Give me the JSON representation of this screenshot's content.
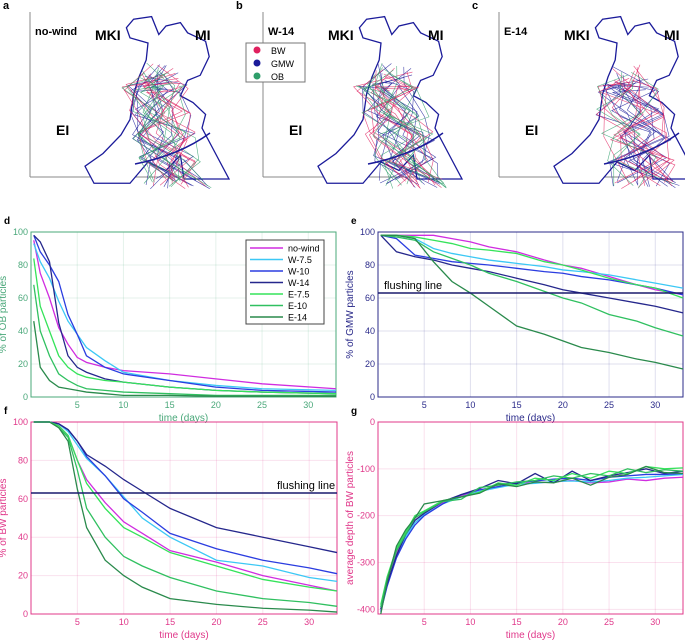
{
  "maps": [
    {
      "panel": "a",
      "title": "no-wind",
      "labels": [
        "MKI",
        "MI",
        "EI"
      ]
    },
    {
      "panel": "b",
      "title": "W-14",
      "labels": [
        "MKI",
        "MI",
        "EI"
      ]
    },
    {
      "panel": "c",
      "title": "E-14",
      "labels": [
        "MKI",
        "MI",
        "EI"
      ]
    }
  ],
  "map_legend": [
    {
      "label": "BW",
      "color": "#e0205f"
    },
    {
      "label": "GMW",
      "color": "#1b1b9a"
    },
    {
      "label": "OB",
      "color": "#2e9e6a"
    }
  ],
  "series_styles": [
    {
      "name": "no-wind",
      "color": "#d02de0"
    },
    {
      "name": "W-7.5",
      "color": "#3cc8f5"
    },
    {
      "name": "W-10",
      "color": "#2b3de0"
    },
    {
      "name": "W-14",
      "color": "#25278c"
    },
    {
      "name": "E-7.5",
      "color": "#35e35a"
    },
    {
      "name": "E-10",
      "color": "#30c060"
    },
    {
      "name": "E-14",
      "color": "#2a8a4c"
    }
  ],
  "chart_data": [
    {
      "panel": "d",
      "type": "line",
      "xlabel": "time (days)",
      "ylabel": "% of OB particles",
      "axis_color": "#4aa87a",
      "xlim": [
        0,
        33
      ],
      "ylim": [
        0,
        100
      ],
      "xticks": [
        5,
        10,
        15,
        20,
        25,
        30
      ],
      "yticks": [
        0,
        20,
        40,
        60,
        80,
        100
      ],
      "legend": "top-right",
      "x": [
        0.3,
        1,
        2,
        3,
        4,
        5,
        6,
        8,
        10,
        15,
        20,
        25,
        33
      ],
      "series": [
        {
          "name": "no-wind",
          "values": [
            95,
            75,
            60,
            42,
            32,
            24,
            21,
            18,
            16,
            14,
            11,
            8,
            5
          ]
        },
        {
          "name": "W-7.5",
          "values": [
            93,
            82,
            72,
            58,
            46,
            38,
            30,
            22,
            15,
            10,
            7,
            5,
            4
          ]
        },
        {
          "name": "W-10",
          "values": [
            98,
            88,
            80,
            70,
            50,
            38,
            25,
            18,
            14,
            10,
            6,
            4,
            3
          ]
        },
        {
          "name": "W-14",
          "values": [
            98,
            94,
            82,
            45,
            25,
            18,
            15,
            11,
            9,
            6,
            4,
            3,
            2
          ]
        },
        {
          "name": "E-7.5",
          "values": [
            84,
            55,
            40,
            25,
            18,
            14,
            12,
            10,
            9,
            6,
            4,
            3,
            2
          ]
        },
        {
          "name": "E-10",
          "values": [
            68,
            40,
            25,
            14,
            10,
            7,
            5,
            4,
            3,
            2,
            1,
            1,
            1
          ]
        },
        {
          "name": "E-14",
          "values": [
            46,
            18,
            10,
            6,
            5,
            4,
            3,
            2,
            1,
            1,
            0.5,
            0.5,
            0.5
          ]
        }
      ]
    },
    {
      "panel": "e",
      "type": "line",
      "xlabel": "time (days)",
      "ylabel": "% of GMW particles",
      "axis_color": "#2b2b8a",
      "xlim": [
        0,
        33
      ],
      "ylim": [
        0,
        100
      ],
      "xticks": [
        5,
        10,
        15,
        20,
        25,
        30
      ],
      "yticks": [
        0,
        20,
        40,
        60,
        80,
        100
      ],
      "hline": {
        "value": 63,
        "label": "flushing line"
      },
      "x": [
        0.3,
        2,
        4,
        6,
        8,
        10,
        12,
        15,
        18,
        20,
        22,
        25,
        28,
        30,
        33
      ],
      "series": [
        {
          "name": "no-wind",
          "values": [
            98,
            98,
            98,
            98,
            96,
            94,
            91,
            88,
            83,
            80,
            78,
            73,
            68,
            65,
            62
          ]
        },
        {
          "name": "W-7.5",
          "values": [
            98,
            98,
            96,
            90,
            87,
            85,
            83,
            81,
            79,
            77,
            76,
            74,
            71,
            69,
            66
          ]
        },
        {
          "name": "W-10",
          "values": [
            98,
            96,
            86,
            84,
            82,
            81,
            80,
            78,
            76,
            75,
            73,
            71,
            68,
            66,
            62
          ]
        },
        {
          "name": "W-14",
          "values": [
            98,
            88,
            85,
            83,
            80,
            78,
            76,
            72,
            68,
            65,
            63,
            60,
            57,
            55,
            51
          ]
        },
        {
          "name": "E-7.5",
          "values": [
            98,
            98,
            97,
            95,
            93,
            90,
            89,
            87,
            82,
            80,
            77,
            72,
            68,
            66,
            60
          ]
        },
        {
          "name": "E-10",
          "values": [
            98,
            97,
            95,
            88,
            84,
            80,
            75,
            70,
            64,
            60,
            57,
            50,
            46,
            42,
            37
          ]
        },
        {
          "name": "E-14",
          "values": [
            98,
            98,
            96,
            82,
            70,
            63,
            55,
            43,
            38,
            34,
            30,
            27,
            23,
            21,
            17
          ]
        }
      ]
    },
    {
      "panel": "f",
      "type": "line",
      "xlabel": "time (days)",
      "ylabel": "% of BW particles",
      "axis_color": "#e0388a",
      "xlim": [
        0,
        33
      ],
      "ylim": [
        0,
        100
      ],
      "xticks": [
        5,
        10,
        15,
        20,
        25,
        30
      ],
      "yticks": [
        0,
        20,
        40,
        60,
        80,
        100
      ],
      "hline": {
        "value": 63,
        "label": "flushing line"
      },
      "x": [
        0.3,
        2,
        3,
        4,
        5,
        6,
        8,
        10,
        12,
        15,
        20,
        25,
        30,
        33
      ],
      "series": [
        {
          "name": "no-wind",
          "values": [
            100,
            100,
            98,
            93,
            80,
            70,
            58,
            48,
            42,
            33,
            27,
            20,
            15,
            12
          ]
        },
        {
          "name": "W-7.5",
          "values": [
            100,
            100,
            99,
            95,
            88,
            81,
            72,
            61,
            50,
            40,
            28,
            25,
            19,
            17
          ]
        },
        {
          "name": "W-10",
          "values": [
            100,
            100,
            99,
            96,
            90,
            82,
            72,
            60,
            53,
            42,
            34,
            28,
            24,
            21
          ]
        },
        {
          "name": "W-14",
          "values": [
            100,
            100,
            99,
            96,
            90,
            83,
            77,
            70,
            64,
            55,
            45,
            40,
            35,
            32
          ]
        },
        {
          "name": "E-7.5",
          "values": [
            100,
            100,
            98,
            93,
            80,
            68,
            55,
            45,
            40,
            32,
            25,
            18,
            14,
            12
          ]
        },
        {
          "name": "E-10",
          "values": [
            100,
            100,
            97,
            92,
            75,
            55,
            40,
            30,
            25,
            19,
            12,
            8,
            6,
            4
          ]
        },
        {
          "name": "E-14",
          "values": [
            100,
            100,
            97,
            90,
            65,
            45,
            28,
            20,
            14,
            8,
            5,
            3,
            2,
            1
          ]
        }
      ]
    },
    {
      "panel": "g",
      "type": "line",
      "xlabel": "time (days)",
      "ylabel": "average depth of BW particles",
      "axis_color": "#e0388a",
      "xlim": [
        0,
        33
      ],
      "ylim": [
        -410,
        0
      ],
      "xticks": [
        5,
        10,
        15,
        20,
        25,
        30
      ],
      "yticks": [
        -400,
        -300,
        -200,
        -100,
        0
      ],
      "x": [
        0.3,
        1,
        2,
        3,
        4,
        5,
        7,
        9,
        11,
        13,
        15,
        17,
        19,
        21,
        23,
        25,
        27,
        29,
        31,
        33
      ],
      "series": [
        {
          "name": "no-wind",
          "values": [
            -400,
            -340,
            -280,
            -240,
            -210,
            -195,
            -172,
            -158,
            -145,
            -138,
            -132,
            -130,
            -128,
            -125,
            -130,
            -128,
            -122,
            -125,
            -120,
            -118
          ]
        },
        {
          "name": "W-7.5",
          "values": [
            -395,
            -345,
            -285,
            -245,
            -215,
            -198,
            -175,
            -160,
            -148,
            -140,
            -133,
            -131,
            -127,
            -126,
            -128,
            -125,
            -120,
            -118,
            -115,
            -112
          ]
        },
        {
          "name": "W-10",
          "values": [
            -405,
            -350,
            -290,
            -250,
            -220,
            -200,
            -175,
            -155,
            -145,
            -138,
            -130,
            -126,
            -122,
            -120,
            -125,
            -118,
            -115,
            -112,
            -112,
            -110
          ]
        },
        {
          "name": "W-14",
          "values": [
            -400,
            -345,
            -285,
            -240,
            -210,
            -195,
            -170,
            -155,
            -142,
            -125,
            -132,
            -110,
            -130,
            -105,
            -125,
            -115,
            -108,
            -100,
            -110,
            -105
          ]
        },
        {
          "name": "E-7.5",
          "values": [
            -390,
            -330,
            -270,
            -235,
            -200,
            -190,
            -168,
            -160,
            -150,
            -130,
            -135,
            -120,
            -125,
            -110,
            -120,
            -105,
            -110,
            -95,
            -100,
            -98
          ]
        },
        {
          "name": "E-10",
          "values": [
            -395,
            -335,
            -275,
            -240,
            -205,
            -192,
            -170,
            -165,
            -140,
            -135,
            -128,
            -125,
            -115,
            -120,
            -110,
            -115,
            -100,
            -108,
            -102,
            -105
          ]
        },
        {
          "name": "E-14",
          "values": [
            -410,
            -340,
            -265,
            -230,
            -205,
            -175,
            -168,
            -160,
            -152,
            -132,
            -138,
            -128,
            -130,
            -120,
            -135,
            -118,
            -112,
            -95,
            -108,
            -110
          ]
        }
      ]
    }
  ]
}
